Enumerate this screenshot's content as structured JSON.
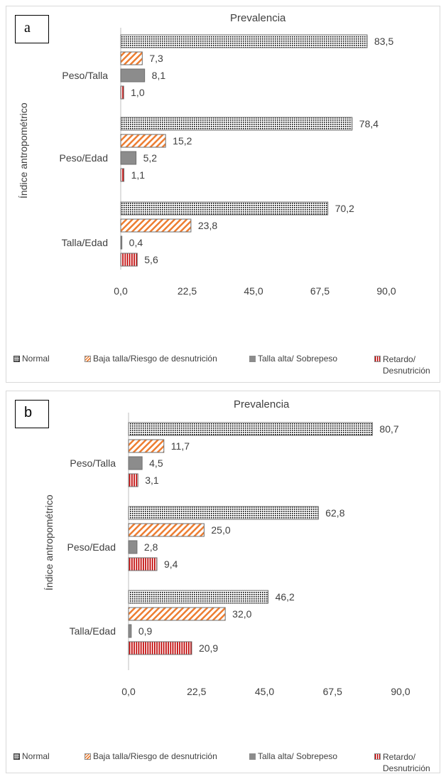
{
  "chart_data": [
    {
      "type": "bar",
      "orientation": "horizontal",
      "panel_label": "a",
      "title": "Prevalencia",
      "ylabel": "Índice antropométrico",
      "categories": [
        "Peso/Talla",
        "Peso/Edad",
        "Talla/Edad"
      ],
      "series": [
        {
          "name": "Normal",
          "values": [
            83.5,
            78.4,
            70.2
          ],
          "labels": [
            "83,5",
            "78,4",
            "70,2"
          ],
          "color": "#000000",
          "pattern": "dots"
        },
        {
          "name": "Baja talla/Riesgo de desnutrición",
          "values": [
            7.3,
            15.2,
            23.8
          ],
          "labels": [
            "7,3",
            "15,2",
            "23,8"
          ],
          "color": "#ed7d31",
          "pattern": "diagonal"
        },
        {
          "name": "Talla alta/ Sobrepeso",
          "values": [
            8.1,
            5.2,
            0.4
          ],
          "labels": [
            "8,1",
            "5,2",
            "0,4"
          ],
          "color": "#8c8c8c",
          "pattern": "solid"
        },
        {
          "name": "Retardo/ Desnutrición",
          "values": [
            1.0,
            1.1,
            5.6
          ],
          "labels": [
            "1,0",
            "1,1",
            "5,6"
          ],
          "color": "#c00000",
          "pattern": "vertical"
        }
      ],
      "xlim": [
        0,
        90
      ],
      "xticks": [
        "0,0",
        "22,5",
        "45,0",
        "67,5",
        "90,0"
      ],
      "grid": false,
      "legend_position": "bottom"
    },
    {
      "type": "bar",
      "orientation": "horizontal",
      "panel_label": "b",
      "title": "Prevalencia",
      "ylabel": "Índice antropométrico",
      "categories": [
        "Peso/Talla",
        "Peso/Edad",
        "Talla/Edad"
      ],
      "series": [
        {
          "name": "Normal",
          "values": [
            80.7,
            62.8,
            46.2
          ],
          "labels": [
            "80,7",
            "62,8",
            "46,2"
          ],
          "color": "#000000",
          "pattern": "dots"
        },
        {
          "name": "Baja talla/Riesgo de desnutrición",
          "values": [
            11.7,
            25.0,
            32.0
          ],
          "labels": [
            "11,7",
            "25,0",
            "32,0"
          ],
          "color": "#ed7d31",
          "pattern": "diagonal"
        },
        {
          "name": "Talla alta/ Sobrepeso",
          "values": [
            4.5,
            2.8,
            0.9
          ],
          "labels": [
            "4,5",
            "2,8",
            "0,9"
          ],
          "color": "#8c8c8c",
          "pattern": "solid"
        },
        {
          "name": "Retardo/ Desnutrición",
          "values": [
            3.1,
            9.4,
            20.9
          ],
          "labels": [
            "3,1",
            "9,4",
            "20,9"
          ],
          "color": "#c00000",
          "pattern": "vertical"
        }
      ],
      "xlim": [
        0,
        90
      ],
      "xticks": [
        "0,0",
        "22,5",
        "45,0",
        "67,5",
        "90,0"
      ],
      "grid": false,
      "legend_position": "bottom"
    }
  ]
}
